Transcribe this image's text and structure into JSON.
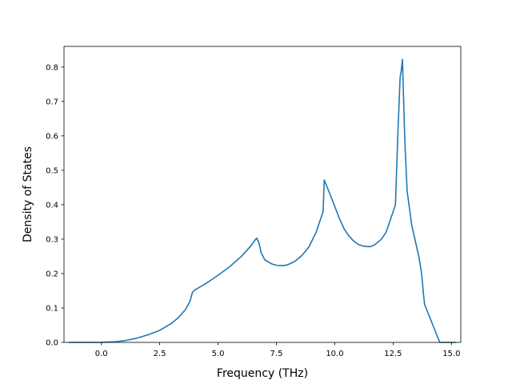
{
  "chart_data": {
    "type": "line",
    "title": "",
    "xlabel": "Frequency (THz)",
    "ylabel": "Density of States",
    "xlim": [
      -1.6,
      15.4
    ],
    "ylim": [
      0.0,
      0.86
    ],
    "x_ticks": [
      0.0,
      2.5,
      5.0,
      7.5,
      10.0,
      12.5,
      15.0
    ],
    "x_tick_labels": [
      "0.0",
      "2.5",
      "5.0",
      "7.5",
      "10.0",
      "12.5",
      "15.0"
    ],
    "y_ticks": [
      0.0,
      0.1,
      0.2,
      0.3,
      0.4,
      0.5,
      0.6,
      0.7,
      0.8
    ],
    "y_tick_labels": [
      "0.0",
      "0.1",
      "0.2",
      "0.3",
      "0.4",
      "0.5",
      "0.6",
      "0.7",
      "0.8"
    ],
    "grid": false,
    "legend": "none",
    "series": [
      {
        "color": "#1f77b4",
        "x": [
          -1.4,
          -0.5,
          0.0,
          0.3,
          0.6,
          1.0,
          1.5,
          2.0,
          2.5,
          3.0,
          3.3,
          3.6,
          3.8,
          3.9,
          4.0,
          4.5,
          5.0,
          5.5,
          6.0,
          6.4,
          6.65,
          6.75,
          6.85,
          7.0,
          7.3,
          7.5,
          7.8,
          8.0,
          8.3,
          8.6,
          8.9,
          9.2,
          9.4,
          9.5,
          9.55,
          9.65,
          9.8,
          10.0,
          10.2,
          10.4,
          10.6,
          10.8,
          11.0,
          11.2,
          11.5,
          11.7,
          12.0,
          12.2,
          12.4,
          12.5,
          12.6,
          12.7,
          12.8,
          12.85,
          12.9,
          13.0,
          13.1,
          13.3,
          13.5,
          13.6,
          13.7,
          13.75,
          13.8,
          13.85,
          14.5,
          15.0,
          15.2
        ],
        "y": [
          0.0,
          0.0,
          0.0,
          0.001,
          0.002,
          0.005,
          0.012,
          0.022,
          0.035,
          0.055,
          0.072,
          0.095,
          0.12,
          0.145,
          0.152,
          0.172,
          0.195,
          0.22,
          0.25,
          0.28,
          0.303,
          0.29,
          0.26,
          0.24,
          0.228,
          0.224,
          0.223,
          0.226,
          0.236,
          0.253,
          0.278,
          0.32,
          0.36,
          0.38,
          0.472,
          0.455,
          0.43,
          0.395,
          0.36,
          0.33,
          0.31,
          0.295,
          0.285,
          0.28,
          0.278,
          0.283,
          0.3,
          0.32,
          0.36,
          0.38,
          0.4,
          0.6,
          0.77,
          0.79,
          0.822,
          0.59,
          0.44,
          0.34,
          0.28,
          0.25,
          0.21,
          0.18,
          0.14,
          0.11,
          0.0,
          0.0,
          0.0
        ]
      }
    ]
  }
}
